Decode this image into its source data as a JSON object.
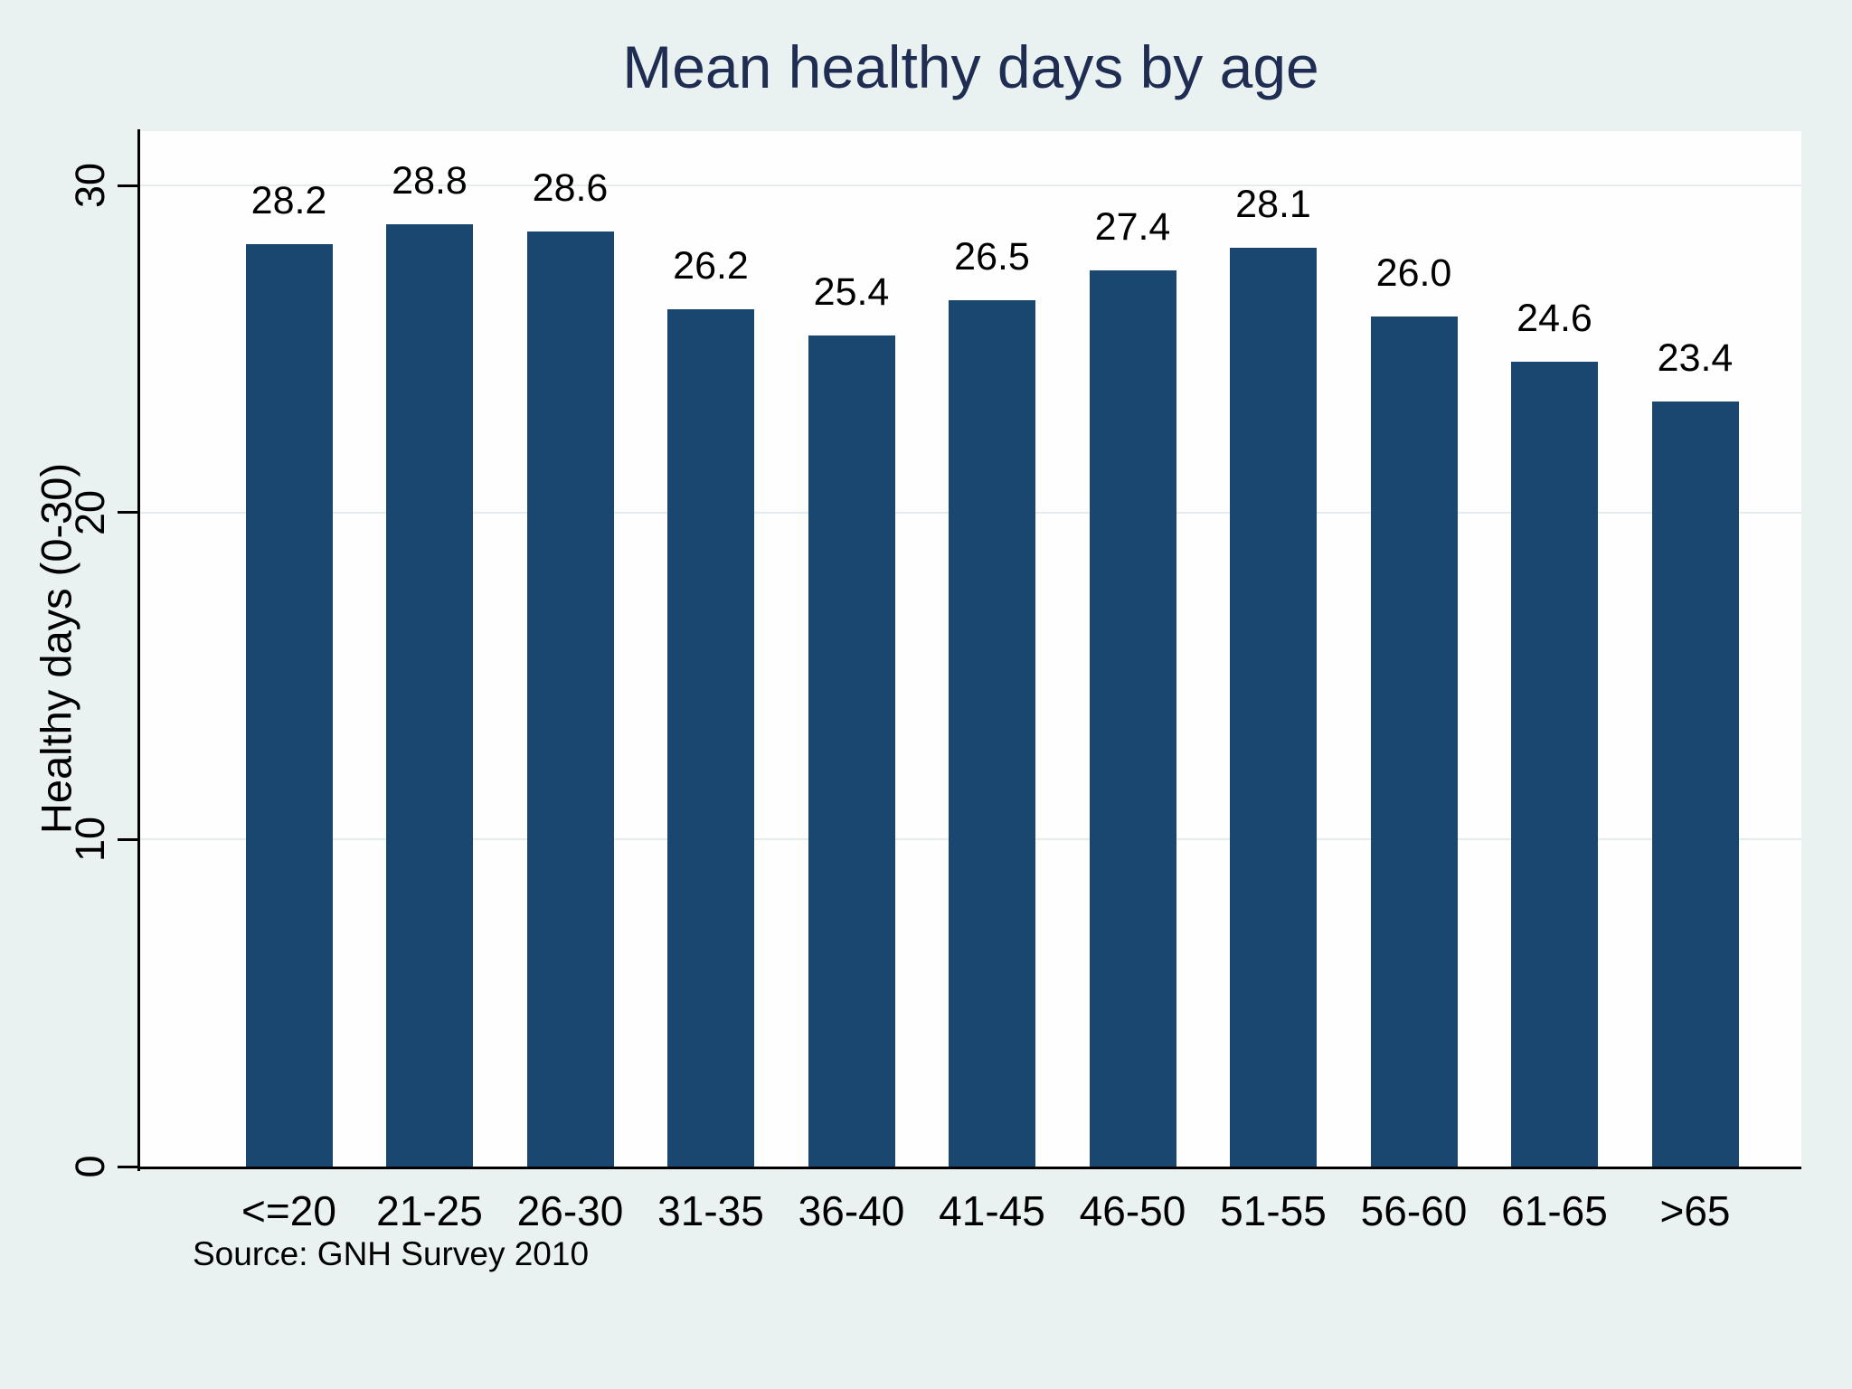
{
  "chart_data": {
    "type": "bar",
    "title": "Mean healthy days by age",
    "categories": [
      "<=20",
      "21-25",
      "26-30",
      "31-35",
      "36-40",
      "41-45",
      "46-50",
      "51-55",
      "56-60",
      "61-65",
      ">65"
    ],
    "values": [
      28.2,
      28.8,
      28.6,
      26.2,
      25.4,
      26.5,
      27.4,
      28.1,
      26.0,
      24.6,
      23.4
    ],
    "value_labels": [
      "28.2",
      "28.8",
      "28.6",
      "26.2",
      "25.4",
      "26.5",
      "27.4",
      "28.1",
      "26.0",
      "24.6",
      "23.4"
    ],
    "xlabel": "",
    "ylabel": "Healthy days (0-30)",
    "ylim": [
      0,
      30
    ],
    "yticks": [
      0,
      10,
      20,
      30
    ],
    "ytick_labels": [
      "0",
      "10",
      "20",
      "30"
    ],
    "grid": true,
    "legend": "none",
    "note": "Source: GNH Survey 2010"
  },
  "colors": {
    "bar": "#1a476f",
    "background": "#e9f2f0",
    "plot_background": "#fdfefd",
    "gridline": "#e4ecee",
    "title_text": "#1f2d53",
    "axis_text": "#000000"
  }
}
